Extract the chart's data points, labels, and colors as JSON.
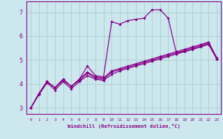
{
  "xlabel": "Windchill (Refroidissement éolien,°C)",
  "background_color": "#cce8ee",
  "line_color": "#880088",
  "grid_color": "#aacccc",
  "xlim": [
    -0.5,
    23.5
  ],
  "ylim": [
    2.75,
    7.45
  ],
  "x_ticks": [
    0,
    1,
    2,
    3,
    4,
    5,
    6,
    7,
    8,
    9,
    10,
    11,
    12,
    13,
    14,
    15,
    16,
    17,
    18,
    19,
    20,
    21,
    22,
    23
  ],
  "y_ticks": [
    3,
    4,
    5,
    6,
    7
  ],
  "series": [
    [
      3.0,
      3.55,
      4.05,
      3.75,
      4.1,
      3.8,
      4.1,
      4.35,
      4.2,
      4.15,
      4.4,
      4.55,
      4.65,
      4.75,
      4.85,
      4.95,
      5.05,
      5.15,
      5.25,
      5.35,
      5.45,
      5.55,
      5.65,
      5.05
    ],
    [
      3.0,
      3.6,
      4.1,
      3.85,
      4.15,
      3.9,
      4.15,
      4.45,
      4.25,
      4.2,
      4.5,
      4.6,
      4.7,
      4.8,
      4.9,
      5.0,
      5.1,
      5.2,
      5.3,
      5.4,
      5.5,
      5.6,
      5.7,
      5.05
    ],
    [
      3.0,
      3.6,
      4.1,
      3.85,
      4.2,
      3.9,
      4.2,
      4.5,
      4.3,
      4.25,
      4.55,
      4.65,
      4.75,
      4.85,
      4.95,
      5.05,
      5.15,
      5.25,
      5.35,
      5.45,
      5.55,
      5.65,
      5.75,
      5.1
    ],
    [
      3.0,
      3.6,
      4.1,
      3.85,
      4.2,
      3.9,
      4.2,
      4.75,
      4.35,
      4.3,
      6.6,
      6.5,
      6.65,
      6.7,
      6.75,
      7.1,
      7.1,
      6.75,
      5.3,
      5.35,
      5.45,
      5.55,
      5.75,
      5.05
    ]
  ]
}
